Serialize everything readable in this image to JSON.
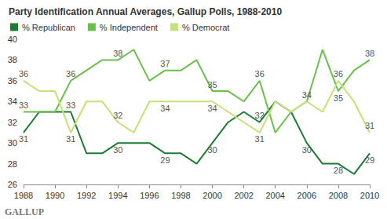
{
  "chart_data": {
    "type": "line",
    "title": "Party Identification Annual Averages, Gallup Polls, 1988-2010",
    "source": "GALLUP",
    "x": [
      1988,
      1989,
      1990,
      1991,
      1992,
      1993,
      1994,
      1995,
      1996,
      1997,
      1998,
      1999,
      2000,
      2001,
      2002,
      2003,
      2004,
      2005,
      2006,
      2007,
      2008,
      2009,
      2010
    ],
    "series": [
      {
        "name": "% Republican",
        "color": "#1e7b35",
        "values": [
          31,
          33,
          33,
          33,
          29,
          29,
          30,
          30,
          30,
          29,
          29,
          28,
          30,
          32,
          33,
          32,
          34,
          33,
          30,
          28,
          28,
          27,
          29
        ],
        "value_labels": [
          "31",
          null,
          null,
          "33",
          null,
          null,
          "30",
          null,
          null,
          "29",
          null,
          null,
          "30",
          null,
          null,
          "32",
          null,
          null,
          "30",
          null,
          "28",
          null,
          "29"
        ]
      },
      {
        "name": "% Independent",
        "color": "#6cbf4a",
        "values": [
          33,
          33,
          33,
          36,
          37,
          38,
          38,
          39,
          36,
          37,
          37,
          38,
          35,
          35,
          34,
          36,
          31,
          33,
          34,
          39,
          35,
          37,
          38
        ],
        "value_labels": [
          "33",
          null,
          null,
          "36",
          null,
          null,
          "38",
          null,
          null,
          "37",
          null,
          null,
          "35",
          null,
          null,
          "36",
          null,
          null,
          "34",
          null,
          "35",
          null,
          "38"
        ]
      },
      {
        "name": "% Democrat",
        "color": "#c6e07a",
        "values": [
          36,
          35,
          35,
          31,
          34,
          34,
          32,
          31,
          34,
          34,
          34,
          34,
          34,
          33,
          32,
          31,
          34,
          33,
          34,
          33,
          36,
          34,
          31
        ],
        "value_labels": [
          "36",
          null,
          null,
          "31",
          null,
          null,
          "32",
          null,
          null,
          "34",
          null,
          null,
          "34",
          null,
          null,
          "31",
          null,
          null,
          null,
          null,
          "36",
          null,
          "31"
        ]
      }
    ],
    "xlim": [
      1988,
      2010
    ],
    "xticks": [
      1988,
      1990,
      1992,
      1994,
      1996,
      1998,
      2000,
      2002,
      2004,
      2006,
      2008,
      2010
    ],
    "ylim": [
      26,
      40
    ],
    "yticks": [
      26,
      28,
      30,
      32,
      34,
      36,
      38,
      40
    ],
    "legend": "top-left",
    "grid": false,
    "data_labels": true
  }
}
